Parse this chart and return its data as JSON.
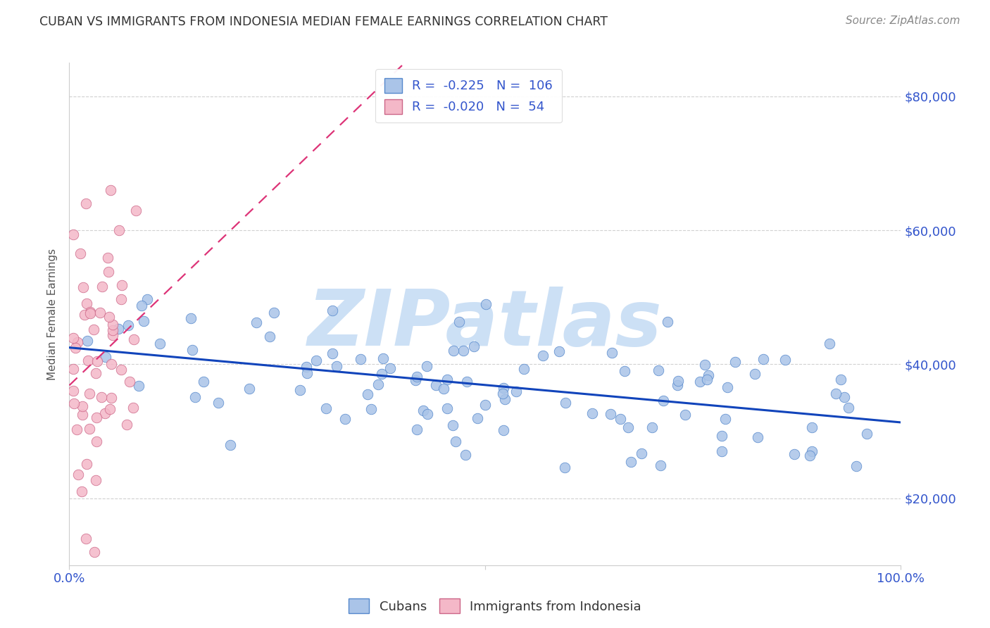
{
  "title": "CUBAN VS IMMIGRANTS FROM INDONESIA MEDIAN FEMALE EARNINGS CORRELATION CHART",
  "source": "Source: ZipAtlas.com",
  "ylabel": "Median Female Earnings",
  "watermark": "ZIPatlas",
  "legend_cubans_R": "-0.225",
  "legend_cubans_N": "106",
  "legend_indonesia_R": "-0.020",
  "legend_indonesia_N": "54",
  "cubans_label": "Cubans",
  "indonesia_label": "Immigrants from Indonesia",
  "xlim": [
    0,
    1
  ],
  "ylim": [
    10000,
    85000
  ],
  "yticks": [
    20000,
    40000,
    60000,
    80000
  ],
  "ytick_labels": [
    "$20,000",
    "$40,000",
    "$60,000",
    "$80,000"
  ],
  "background_color": "#ffffff",
  "grid_color": "#cccccc",
  "title_color": "#333333",
  "axis_label_color": "#555555",
  "tick_color": "#3355cc",
  "scatter_cubans_color": "#aac4e8",
  "scatter_cubans_edge": "#5588cc",
  "scatter_indonesia_color": "#f4b8c8",
  "scatter_indonesia_edge": "#cc6688",
  "trendline_cubans_color": "#1144bb",
  "trendline_indonesia_color": "#dd3377",
  "watermark_color": "#cce0f5",
  "legend_label_color": "#3355cc",
  "legend_R_color": "#333333",
  "source_color": "#888888"
}
